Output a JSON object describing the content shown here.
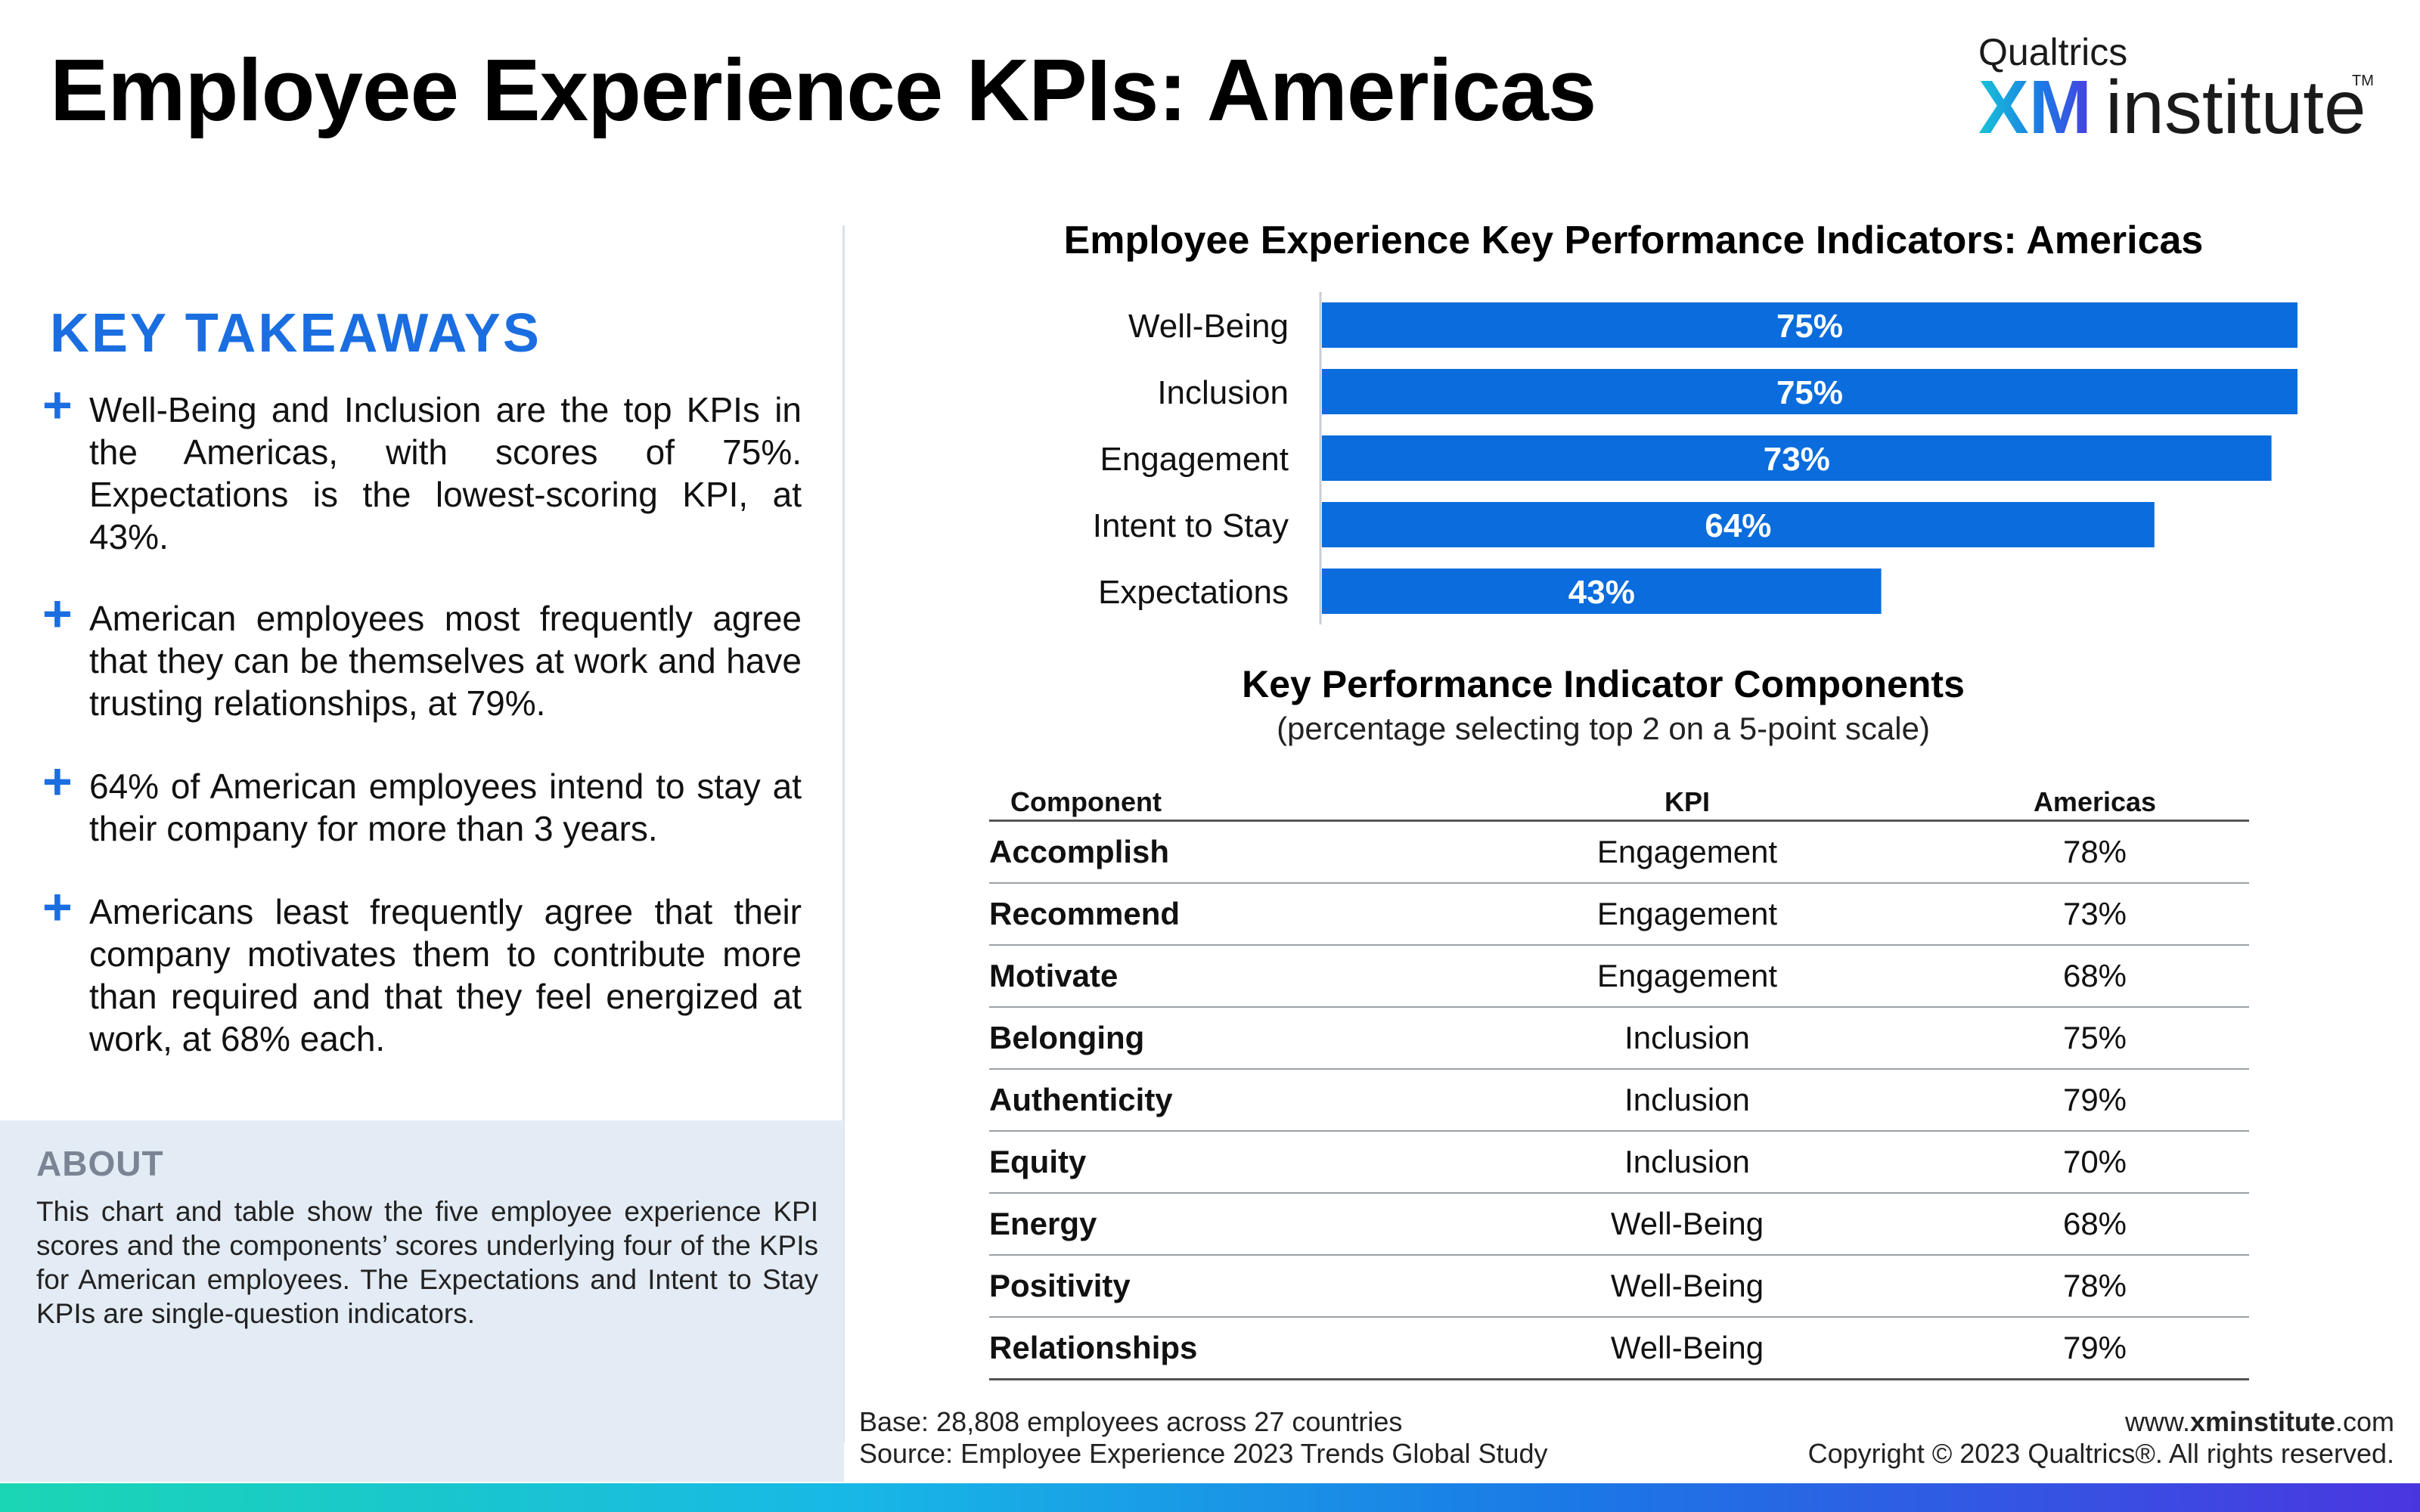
{
  "page": {
    "title": "Employee Experience KPIs: Americas"
  },
  "logo": {
    "top": "Qualtrics",
    "xm": "XM",
    "institute": "institute",
    "tm": "TM"
  },
  "takeaways": {
    "heading": "KEY TAKEAWAYS",
    "items": [
      "Well-Being and Inclusion are the top KPIs in the Americas, with scores of 75%. Expectations is the lowest-scoring KPI, at 43%.",
      "American employees most frequently agree that they can be themselves at work and have trusting relationships, at 79%.",
      "64% of American employees intend to stay at their company for more than 3 years.",
      "Americans least frequently agree that their company motivates them to contribute more than required and that they feel energized at work, at 68% each."
    ]
  },
  "about": {
    "title": "ABOUT",
    "text": "This chart and table show the five employee experience KPI scores and the components’ scores underlying four of the KPIs for American employees. The Expectations and Intent to Stay KPIs are single-question indicators."
  },
  "chart_data": {
    "type": "bar",
    "orientation": "horizontal",
    "title": "Employee Experience Key Performance Indicators: Americas",
    "categories": [
      "Well-Being",
      "Inclusion",
      "Engagement",
      "Intent to Stay",
      "Expectations"
    ],
    "values": [
      75,
      75,
      73,
      64,
      43
    ],
    "value_labels": [
      "75%",
      "75%",
      "73%",
      "64%",
      "43%"
    ],
    "xlim": [
      0,
      75
    ],
    "color": "#0a6cdd",
    "grid": false,
    "legend": "none"
  },
  "table": {
    "title": "Key Performance Indicator Components",
    "subtitle": "(percentage selecting top 2 on a 5-point scale)",
    "headers": [
      "Component",
      "KPI",
      "Americas"
    ],
    "rows": [
      [
        "Accomplish",
        "Engagement",
        "78%"
      ],
      [
        "Recommend",
        "Engagement",
        "73%"
      ],
      [
        "Motivate",
        "Engagement",
        "68%"
      ],
      [
        "Belonging",
        "Inclusion",
        "75%"
      ],
      [
        "Authenticity",
        "Inclusion",
        "79%"
      ],
      [
        "Equity",
        "Inclusion",
        "70%"
      ],
      [
        "Energy",
        "Well-Being",
        "68%"
      ],
      [
        "Positivity",
        "Well-Being",
        "78%"
      ],
      [
        "Relationships",
        "Well-Being",
        "79%"
      ]
    ]
  },
  "footer": {
    "base": "Base: 28,808 employees across 27 countries",
    "source": "Source: Employee Experience 2023 Trends Global Study",
    "url_prefix": "www.",
    "url_bold": "xminstitute",
    "url_suffix": ".com",
    "copyright": "Copyright © 2023 Qualtrics®. All rights reserved."
  }
}
